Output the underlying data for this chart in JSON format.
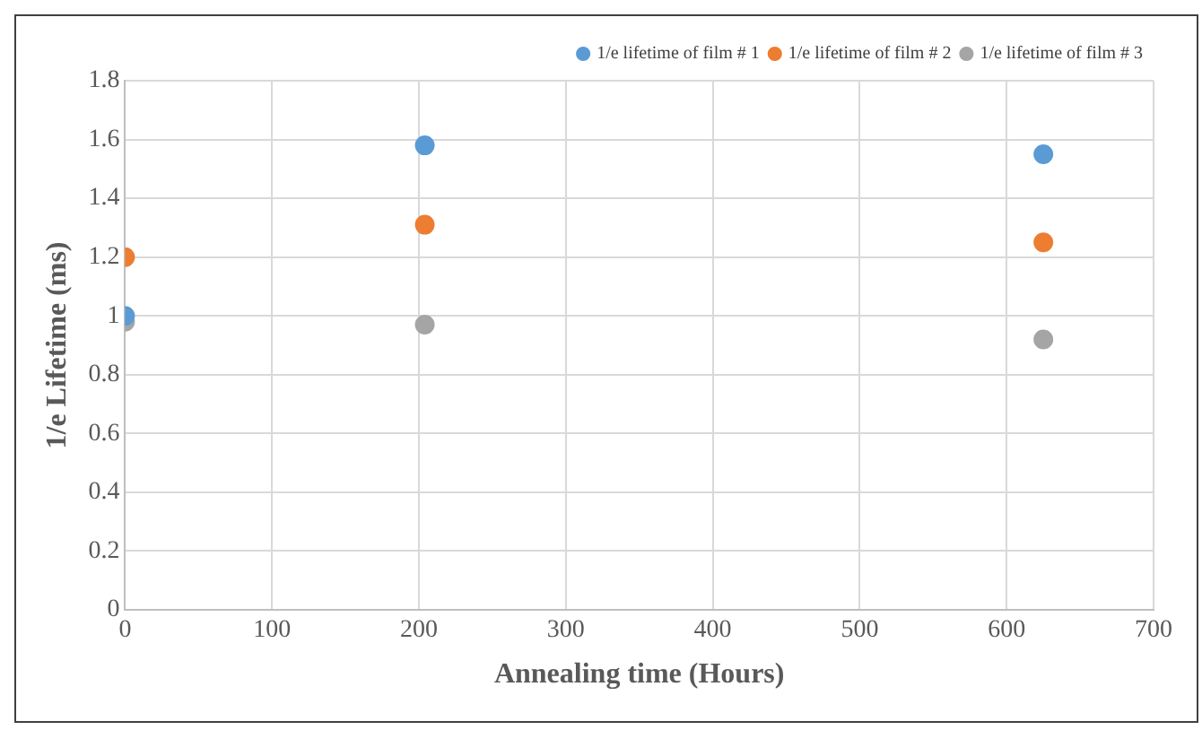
{
  "chart_data": {
    "type": "scatter",
    "xlabel": "Annealing time (Hours)",
    "ylabel": "1/e Lifetime (ms)",
    "xlim": [
      0,
      700
    ],
    "xticks": [
      0,
      100,
      200,
      300,
      400,
      500,
      600,
      700
    ],
    "ylim": [
      0,
      1.8
    ],
    "yticks": [
      0,
      0.2,
      0.4,
      0.6,
      0.8,
      1,
      1.2,
      1.4,
      1.6,
      1.8
    ],
    "grid": true,
    "legend": "top right",
    "marker": "circle",
    "series": [
      {
        "name": "1/e lifetime of film # 1",
        "color": "#5b9bd5",
        "x": [
          0,
          204,
          625
        ],
        "values": [
          1.0,
          1.58,
          1.55
        ]
      },
      {
        "name": "1/e lifetime of film # 2",
        "color": "#ed7d31",
        "x": [
          0,
          204,
          625
        ],
        "values": [
          1.2,
          1.31,
          1.25
        ]
      },
      {
        "name": "1/e lifetime of film # 3",
        "color": "#a5a5a5",
        "x": [
          0,
          204,
          625
        ],
        "values": [
          0.98,
          0.97,
          0.92
        ]
      }
    ]
  }
}
